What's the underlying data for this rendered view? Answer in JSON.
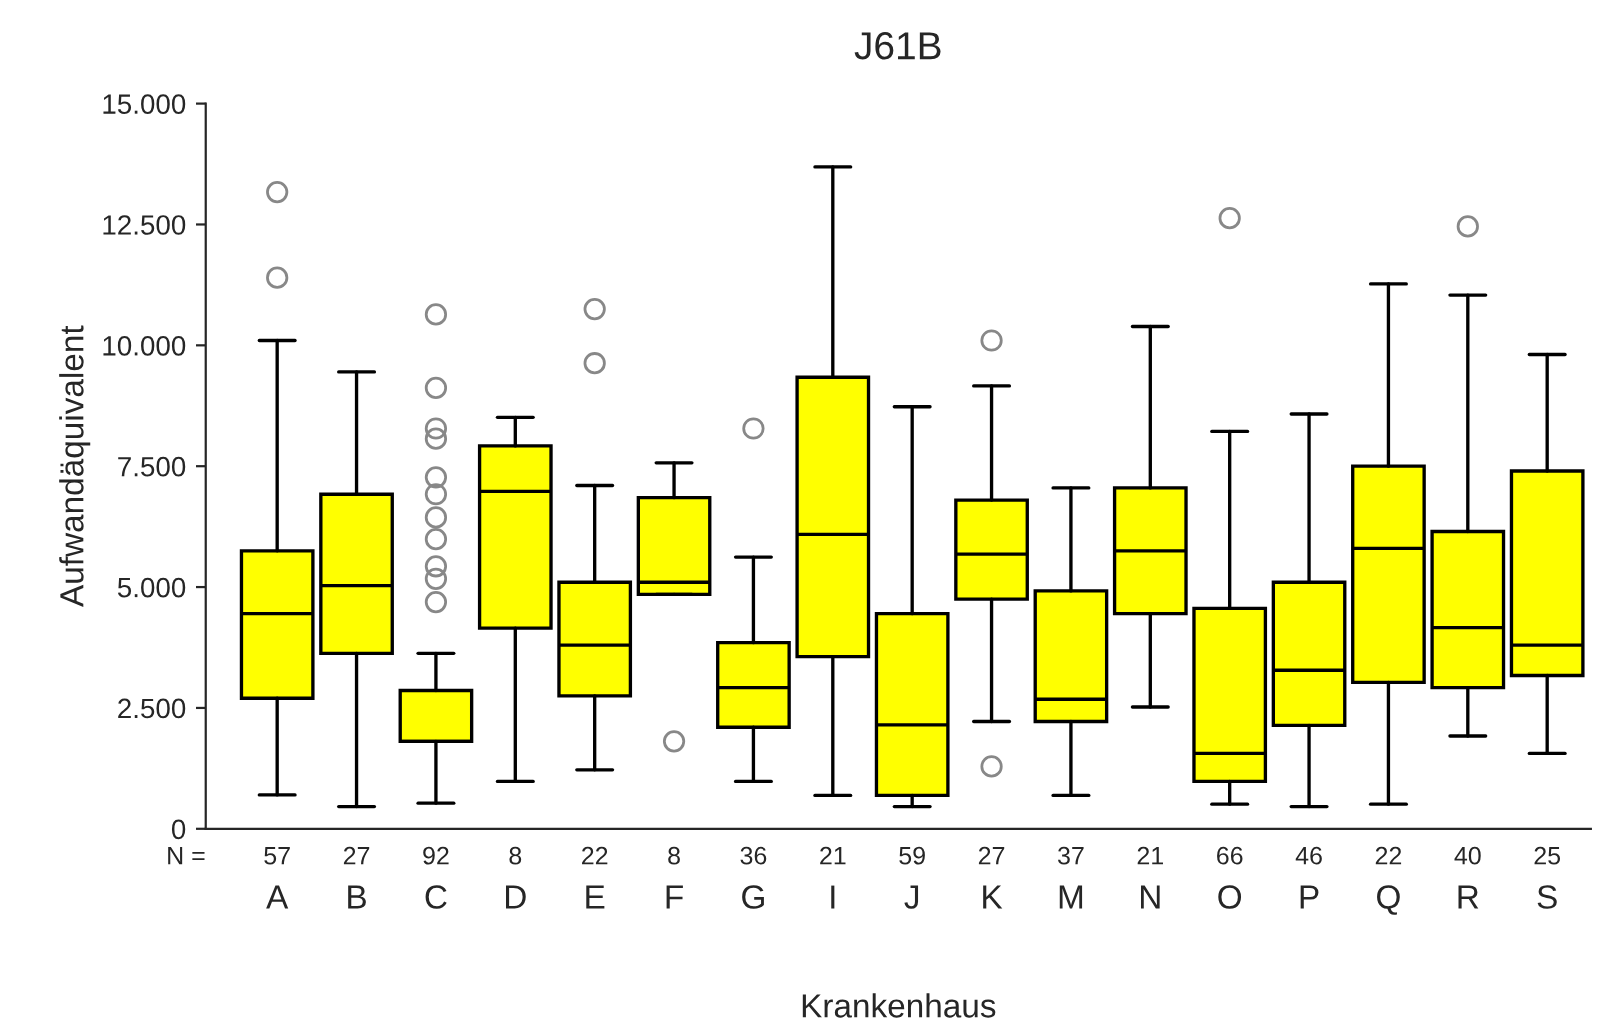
{
  "chart_data": {
    "type": "box",
    "title": "J61B",
    "xlabel": "Krankenhaus",
    "ylabel": "Aufwandäquivalent",
    "categories": [
      "A",
      "B",
      "C",
      "D",
      "E",
      "F",
      "G",
      "I",
      "J",
      "K",
      "M",
      "N",
      "O",
      "P",
      "Q",
      "R",
      "S"
    ],
    "color": "#ffff00",
    "boxes": [
      {
        "low": 700,
        "q1": 2700,
        "median": 4450,
        "q3": 5750,
        "high": 10100,
        "outliers": [
          13170,
          11400
        ]
      },
      {
        "low": 460,
        "q1": 3630,
        "median": 5030,
        "q3": 6920,
        "high": 9450
      },
      {
        "low": 530,
        "q1": 1810,
        "median": 1810,
        "q3": 2860,
        "high": 3630,
        "outliers": [
          10640,
          9120,
          8280,
          8070,
          7270,
          6920,
          6440,
          5990,
          5430,
          5170,
          4690
        ]
      },
      {
        "low": 980,
        "q1": 4150,
        "median": 6980,
        "q3": 7920,
        "high": 8510
      },
      {
        "low": 1220,
        "q1": 2750,
        "median": 3800,
        "q3": 5100,
        "high": 7100,
        "outliers": [
          10750,
          9630
        ]
      },
      {
        "low": 4850,
        "q1": 4850,
        "median": 5100,
        "q3": 6850,
        "high": 7570,
        "outliers": [
          1810
        ]
      },
      {
        "low": 980,
        "q1": 2100,
        "median": 2920,
        "q3": 3850,
        "high": 5620,
        "outliers": [
          8280
        ]
      },
      {
        "low": 690,
        "q1": 3560,
        "median": 6090,
        "q3": 9340,
        "high": 13690
      },
      {
        "low": 460,
        "q1": 690,
        "median": 2150,
        "q3": 4450,
        "high": 8730
      },
      {
        "low": 2220,
        "q1": 4750,
        "median": 5680,
        "q3": 6800,
        "high": 9160,
        "outliers": [
          10100,
          1290
        ]
      },
      {
        "low": 690,
        "q1": 2220,
        "median": 2680,
        "q3": 4920,
        "high": 7050
      },
      {
        "low": 2520,
        "q1": 4450,
        "median": 5750,
        "q3": 7050,
        "high": 10390
      },
      {
        "low": 510,
        "q1": 980,
        "median": 1560,
        "q3": 4560,
        "high": 8220,
        "outliers": [
          12630
        ]
      },
      {
        "low": 460,
        "q1": 2140,
        "median": 3280,
        "q3": 5100,
        "high": 8580
      },
      {
        "low": 510,
        "q1": 3030,
        "median": 5800,
        "q3": 7500,
        "high": 11270
      },
      {
        "low": 1920,
        "q1": 2920,
        "median": 4160,
        "q3": 6150,
        "high": 11040,
        "outliers": [
          12460
        ]
      },
      {
        "low": 1560,
        "q1": 3170,
        "median": 3800,
        "q3": 7400,
        "high": 9810
      }
    ],
    "annotations": [
      "N =",
      "57",
      "27",
      "92",
      "8",
      "22",
      "8",
      "36",
      "21",
      "59",
      "27",
      "37",
      "21",
      "66",
      "46",
      "22",
      "40",
      "25"
    ],
    "ylim": [
      0,
      15000
    ],
    "yticks": [
      0,
      {
        "value": 2500,
        "label": "2.500"
      },
      {
        "value": 5000,
        "label": "5.000"
      },
      {
        "value": 7500,
        "label": "7.500"
      },
      {
        "value": 10000,
        "label": "10.000"
      },
      {
        "value": 12500,
        "label": "12.500"
      },
      {
        "value": 15000,
        "label": "15.000"
      }
    ],
    "grid": false,
    "legend": false
  }
}
